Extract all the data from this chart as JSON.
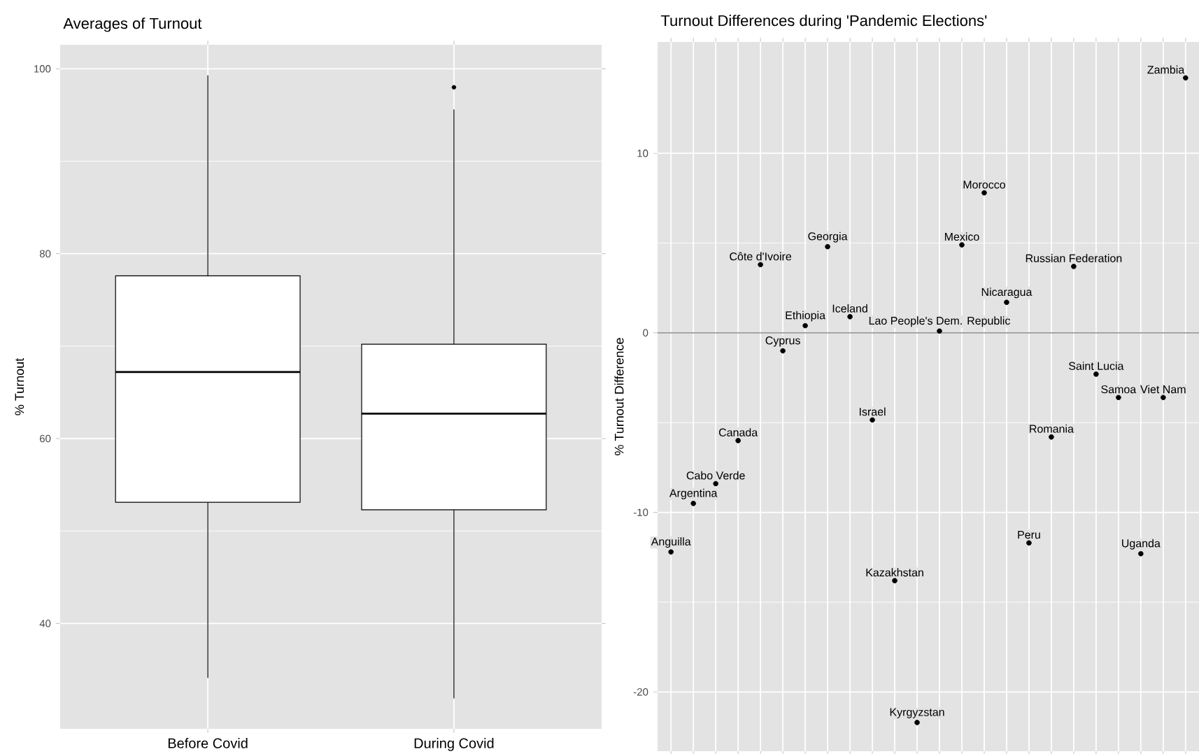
{
  "chart_data": [
    {
      "type": "box",
      "title": "Averages of Turnout",
      "ylabel": "% Turnout",
      "categories": [
        "Before Covid",
        "During Covid"
      ],
      "boxes": [
        {
          "low": 34.1,
          "q1": 53.1,
          "median": 67.2,
          "q3": 77.6,
          "high": 99.3
        },
        {
          "low": 31.9,
          "q1": 52.3,
          "median": 62.7,
          "q3": 70.2,
          "high": 95.6,
          "outliers": [
            98.0
          ]
        }
      ],
      "ylim": [
        28.6,
        102.6
      ],
      "yticks": [
        40,
        60,
        80,
        100
      ],
      "grid": true
    },
    {
      "type": "scatter",
      "title": "Turnout Differences during 'Pandemic Elections'",
      "ylabel": "% Turnout Difference",
      "categories": [
        null,
        null,
        null,
        null,
        null,
        null,
        null,
        null,
        null,
        null,
        null,
        null,
        null,
        null,
        null,
        null,
        null,
        null,
        null,
        null,
        null,
        null,
        null,
        null
      ],
      "values": [
        -12.2,
        -9.5,
        -8.4,
        -6.0,
        3.8,
        -1.0,
        0.4,
        4.8,
        0.9,
        -4.85,
        -13.8,
        -21.7,
        0.1,
        4.9,
        7.8,
        1.7,
        -11.7,
        -5.8,
        3.7,
        -2.3,
        -3.6,
        -12.3,
        -3.6,
        14.2
      ],
      "value_labels": [
        "Anguilla",
        "Argentina",
        "Cabo Verde",
        "Canada",
        "Côte d'Ivoire",
        "Cyprus",
        "Ethiopia",
        "Georgia",
        "Iceland",
        "Israel",
        "Kazakhstan",
        "Kyrgyzstan",
        "Lao People's Dem. Republic",
        "Mexico",
        "Morocco",
        "Nicaragua",
        "Peru",
        "Romania",
        "Russian Federation",
        "Saint Lucia",
        "Samoa",
        "Uganda",
        "Viet Nam",
        "Zambia"
      ],
      "color": "#000000",
      "marker": "circle",
      "ylim": [
        -23.3,
        16.2
      ],
      "yticks": [
        -20,
        -10,
        0,
        10
      ],
      "grid": true,
      "tick_labels": "y",
      "ref_lines": [
        {
          "axis": "y",
          "value": 0,
          "color": "#9a9a9a"
        }
      ]
    }
  ]
}
